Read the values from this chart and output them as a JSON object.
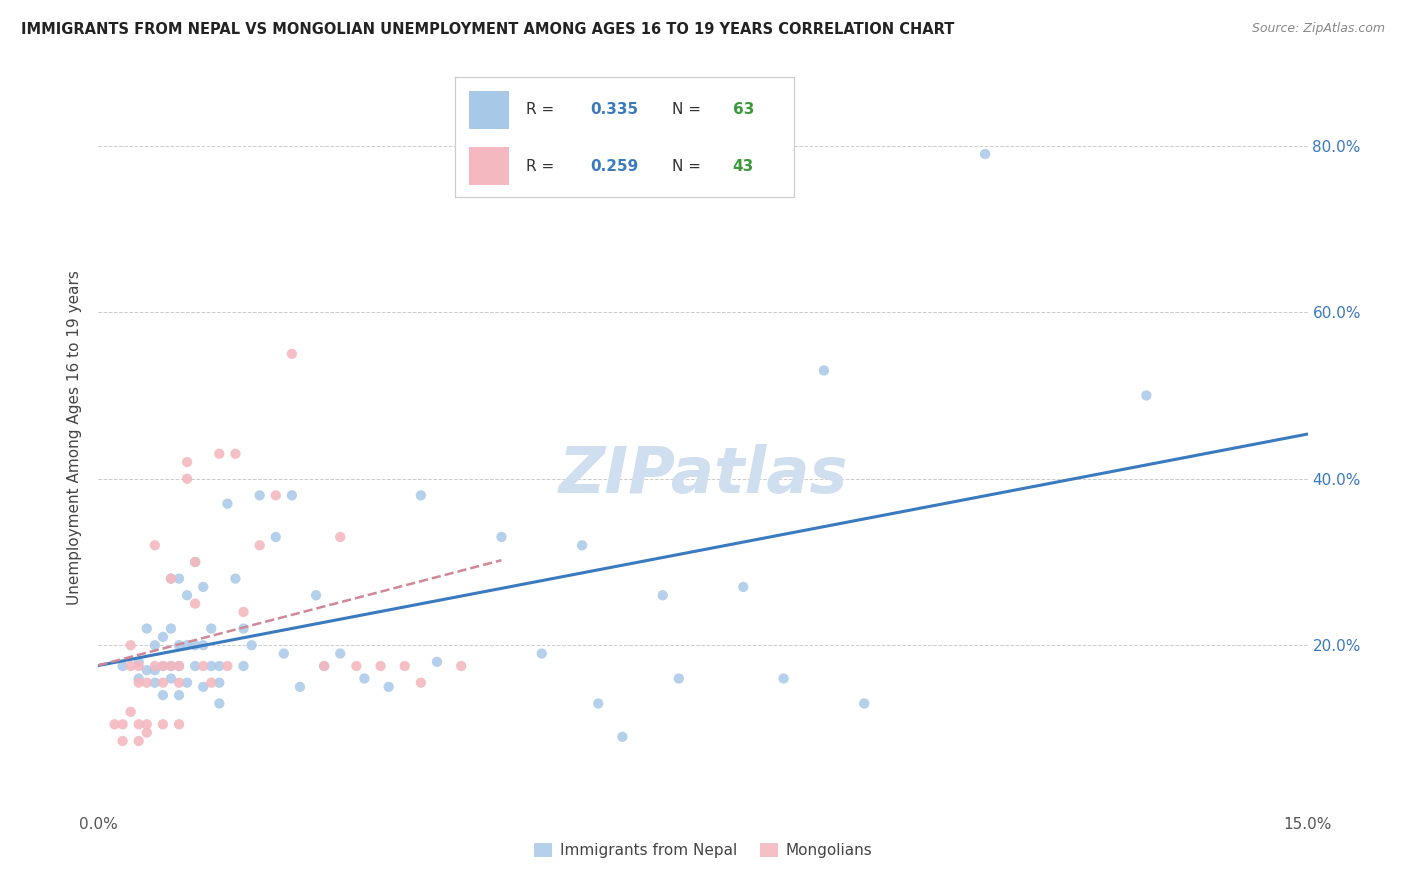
{
  "title": "IMMIGRANTS FROM NEPAL VS MONGOLIAN UNEMPLOYMENT AMONG AGES 16 TO 19 YEARS CORRELATION CHART",
  "source": "Source: ZipAtlas.com",
  "ylabel": "Unemployment Among Ages 16 to 19 years",
  "xlim": [
    0.0,
    0.15
  ],
  "ylim": [
    0.0,
    0.9
  ],
  "ytick_positions": [
    0.0,
    0.2,
    0.4,
    0.6,
    0.8
  ],
  "yticklabels_right": [
    "",
    "20.0%",
    "40.0%",
    "60.0%",
    "80.0%"
  ],
  "nepal_R": 0.335,
  "nepal_N": 63,
  "mongolia_R": 0.259,
  "mongolia_N": 43,
  "nepal_color": "#a8c8e8",
  "mongolia_color": "#f4b8c0",
  "nepal_line_color": "#3a7abf",
  "mongolia_line_color": "#d08898",
  "text_color": "#3a7abf",
  "n_color": "#3a9a3a",
  "watermark_color": "#d0dff0",
  "nepal_x": [
    0.003,
    0.005,
    0.005,
    0.006,
    0.006,
    0.007,
    0.007,
    0.007,
    0.008,
    0.008,
    0.008,
    0.009,
    0.009,
    0.009,
    0.009,
    0.01,
    0.01,
    0.01,
    0.01,
    0.011,
    0.011,
    0.011,
    0.012,
    0.012,
    0.012,
    0.013,
    0.013,
    0.013,
    0.014,
    0.014,
    0.015,
    0.015,
    0.015,
    0.016,
    0.017,
    0.018,
    0.018,
    0.019,
    0.02,
    0.022,
    0.023,
    0.024,
    0.025,
    0.027,
    0.028,
    0.03,
    0.033,
    0.036,
    0.04,
    0.042,
    0.05,
    0.055,
    0.06,
    0.062,
    0.065,
    0.07,
    0.072,
    0.08,
    0.085,
    0.09,
    0.095,
    0.11,
    0.13
  ],
  "nepal_y": [
    0.175,
    0.16,
    0.18,
    0.17,
    0.22,
    0.155,
    0.17,
    0.2,
    0.14,
    0.175,
    0.21,
    0.16,
    0.175,
    0.22,
    0.28,
    0.14,
    0.175,
    0.2,
    0.28,
    0.155,
    0.2,
    0.26,
    0.175,
    0.2,
    0.3,
    0.15,
    0.2,
    0.27,
    0.175,
    0.22,
    0.13,
    0.155,
    0.175,
    0.37,
    0.28,
    0.22,
    0.175,
    0.2,
    0.38,
    0.33,
    0.19,
    0.38,
    0.15,
    0.26,
    0.175,
    0.19,
    0.16,
    0.15,
    0.38,
    0.18,
    0.33,
    0.19,
    0.32,
    0.13,
    0.09,
    0.26,
    0.16,
    0.27,
    0.16,
    0.53,
    0.13,
    0.79,
    0.5
  ],
  "mongolia_x": [
    0.002,
    0.003,
    0.003,
    0.004,
    0.004,
    0.004,
    0.005,
    0.005,
    0.005,
    0.005,
    0.006,
    0.006,
    0.006,
    0.007,
    0.007,
    0.008,
    0.008,
    0.008,
    0.009,
    0.009,
    0.01,
    0.01,
    0.01,
    0.011,
    0.011,
    0.012,
    0.012,
    0.013,
    0.014,
    0.015,
    0.016,
    0.017,
    0.018,
    0.02,
    0.022,
    0.024,
    0.028,
    0.03,
    0.032,
    0.035,
    0.038,
    0.04,
    0.045
  ],
  "mongolia_y": [
    0.105,
    0.085,
    0.105,
    0.12,
    0.175,
    0.2,
    0.085,
    0.105,
    0.155,
    0.175,
    0.095,
    0.105,
    0.155,
    0.175,
    0.32,
    0.105,
    0.155,
    0.175,
    0.175,
    0.28,
    0.105,
    0.155,
    0.175,
    0.4,
    0.42,
    0.25,
    0.3,
    0.175,
    0.155,
    0.43,
    0.175,
    0.43,
    0.24,
    0.32,
    0.38,
    0.55,
    0.175,
    0.33,
    0.175,
    0.175,
    0.175,
    0.155,
    0.175
  ]
}
